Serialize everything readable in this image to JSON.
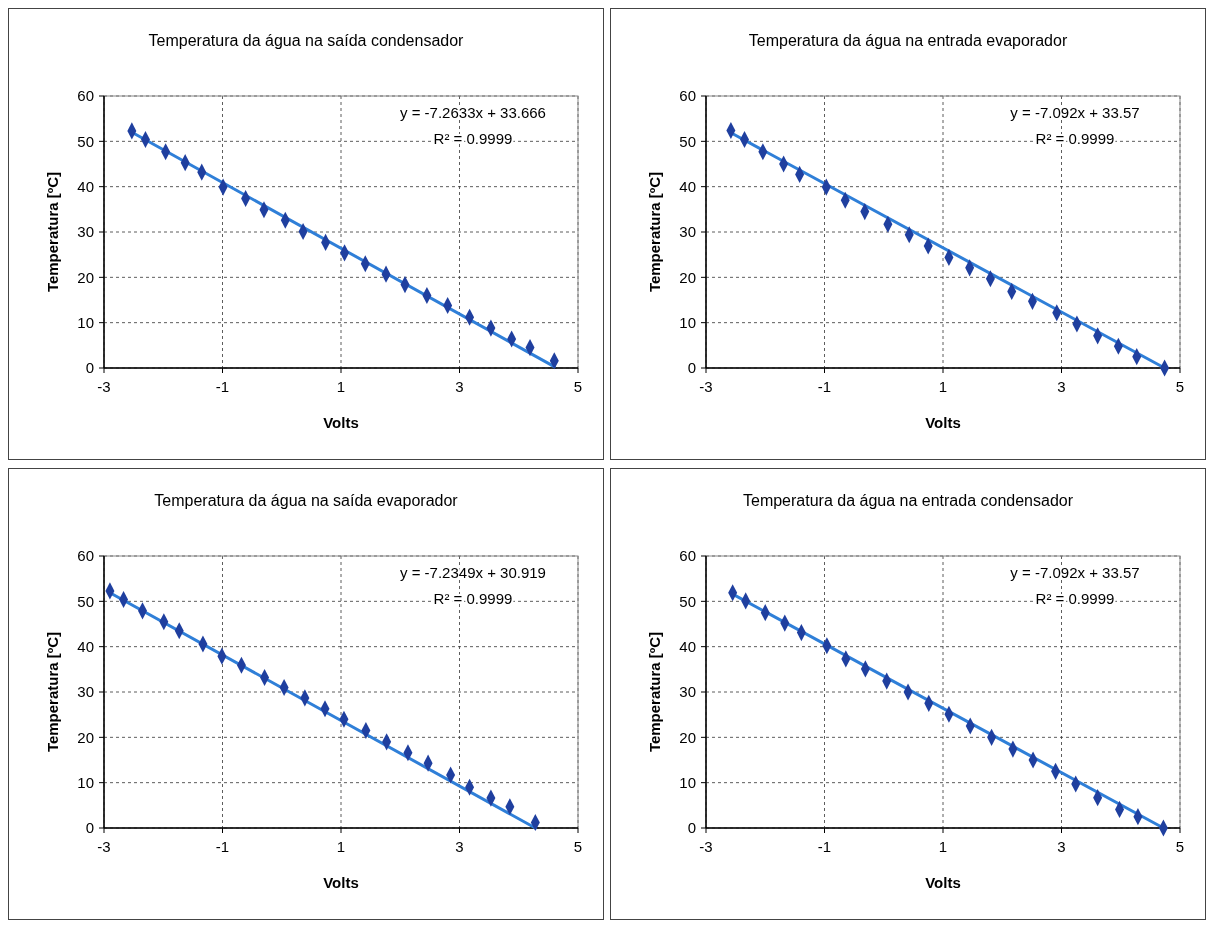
{
  "chart_data": [
    {
      "type": "scatter",
      "title": "Temperatura da água na saída condensador",
      "xlabel": "Volts",
      "ylabel": "Temperatura [ºC]",
      "xlim": [
        -3,
        5
      ],
      "xticks": [
        -3,
        -1,
        1,
        3,
        5
      ],
      "ylim": [
        0,
        60
      ],
      "yticks": [
        0,
        10,
        20,
        30,
        40,
        50,
        60
      ],
      "grid": true,
      "annotations": [
        "y = -7.2633x + 33.666",
        "R² = 0.9999"
      ],
      "series": [
        {
          "marker": "diamond",
          "color": "#1f3f9f",
          "x": [
            -2.53,
            -2.3,
            -1.96,
            -1.63,
            -1.35,
            -0.99,
            -0.61,
            -0.3,
            0.06,
            0.36,
            0.74,
            1.06,
            1.41,
            1.76,
            2.08,
            2.45,
            2.8,
            3.17,
            3.53,
            3.88,
            4.19,
            4.6
          ],
          "values": [
            52.3,
            50.4,
            47.7,
            45.3,
            43.2,
            39.9,
            37.4,
            34.9,
            32.6,
            30.1,
            27.7,
            25.4,
            23.0,
            20.7,
            18.4,
            16.0,
            13.8,
            11.2,
            8.8,
            6.4,
            4.5,
            1.6
          ]
        },
        {
          "type": "line",
          "color": "#2f7fd8",
          "x": [
            -2.53,
            4.6
          ],
          "values": [
            52.0,
            0.3
          ]
        }
      ]
    },
    {
      "type": "scatter",
      "title": "Temperatura da água na entrada evaporador",
      "xlabel": "Volts",
      "ylabel": "Temperatura [ºC]",
      "xlim": [
        -3,
        5
      ],
      "xticks": [
        -3,
        -1,
        1,
        3,
        5
      ],
      "ylim": [
        0,
        60
      ],
      "yticks": [
        0,
        10,
        20,
        30,
        40,
        50,
        60
      ],
      "grid": true,
      "annotations": [
        "y = -7.092x + 33.57",
        "R² = 0.9999"
      ],
      "series": [
        {
          "marker": "diamond",
          "color": "#1f3f9f",
          "x": [
            -2.58,
            -2.35,
            -2.04,
            -1.69,
            -1.42,
            -0.97,
            -0.65,
            -0.32,
            0.07,
            0.43,
            0.75,
            1.1,
            1.45,
            1.8,
            2.16,
            2.51,
            2.92,
            3.26,
            3.61,
            3.96,
            4.27,
            4.74
          ],
          "values": [
            52.4,
            50.4,
            47.7,
            45.0,
            42.7,
            39.9,
            37.0,
            34.5,
            31.7,
            29.4,
            26.9,
            24.4,
            22.1,
            19.7,
            16.9,
            14.7,
            12.2,
            9.7,
            7.1,
            4.8,
            2.5,
            0
          ]
        },
        {
          "type": "line",
          "color": "#2f7fd8",
          "x": [
            -2.58,
            4.74
          ],
          "values": [
            51.9,
            0
          ]
        }
      ]
    },
    {
      "type": "scatter",
      "title": "Temperatura da água na saída evaporador",
      "xlabel": "Volts",
      "ylabel": "Temperatura [ºC]",
      "xlim": [
        -3,
        5
      ],
      "xticks": [
        -3,
        -1,
        1,
        3,
        5
      ],
      "ylim": [
        0,
        60
      ],
      "yticks": [
        0,
        10,
        20,
        30,
        40,
        50,
        60
      ],
      "grid": true,
      "annotations": [
        "y = -7.2349x + 30.919",
        "R² = 0.9999"
      ],
      "series": [
        {
          "marker": "diamond",
          "color": "#1f3f9f",
          "x": [
            -2.9,
            -2.67,
            -2.35,
            -1.99,
            -1.73,
            -1.33,
            -1.01,
            -0.68,
            -0.29,
            0.04,
            0.39,
            0.73,
            1.05,
            1.42,
            1.77,
            2.13,
            2.47,
            2.85,
            3.17,
            3.53,
            3.85,
            4.28
          ],
          "values": [
            52.3,
            50.4,
            47.9,
            45.5,
            43.5,
            40.6,
            37.9,
            35.9,
            33.2,
            31.0,
            28.7,
            26.3,
            24.0,
            21.5,
            19.0,
            16.6,
            14.3,
            11.7,
            9.0,
            6.6,
            4.7,
            1.2
          ]
        },
        {
          "type": "line",
          "color": "#2f7fd8",
          "x": [
            -2.9,
            4.28
          ],
          "values": [
            51.9,
            0
          ]
        }
      ]
    },
    {
      "type": "scatter",
      "title": "Temperatura da água na entrada condensador",
      "xlabel": "Volts",
      "ylabel": "Temperatura [ºC]",
      "xlim": [
        -3,
        5
      ],
      "xticks": [
        -3,
        -1,
        1,
        3,
        5
      ],
      "ylim": [
        0,
        60
      ],
      "yticks": [
        0,
        10,
        20,
        30,
        40,
        50,
        60
      ],
      "grid": true,
      "annotations": [
        "y = -7.092x + 33.57",
        "R² = 0.9999"
      ],
      "series": [
        {
          "marker": "diamond",
          "color": "#1f3f9f",
          "x": [
            -2.55,
            -2.33,
            -2.0,
            -1.67,
            -1.39,
            -0.96,
            -0.64,
            -0.31,
            0.05,
            0.41,
            0.76,
            1.1,
            1.46,
            1.82,
            2.18,
            2.52,
            2.9,
            3.24,
            3.61,
            3.98,
            4.29,
            4.72
          ],
          "values": [
            51.9,
            50.1,
            47.5,
            45.2,
            43.1,
            40.2,
            37.3,
            35.1,
            32.4,
            30.0,
            27.5,
            25.1,
            22.5,
            20.0,
            17.4,
            15.0,
            12.5,
            9.7,
            6.7,
            4.1,
            2.5,
            0
          ]
        },
        {
          "type": "line",
          "color": "#2f7fd8",
          "x": [
            -2.55,
            4.72
          ],
          "values": [
            51.6,
            0
          ]
        }
      ]
    }
  ]
}
